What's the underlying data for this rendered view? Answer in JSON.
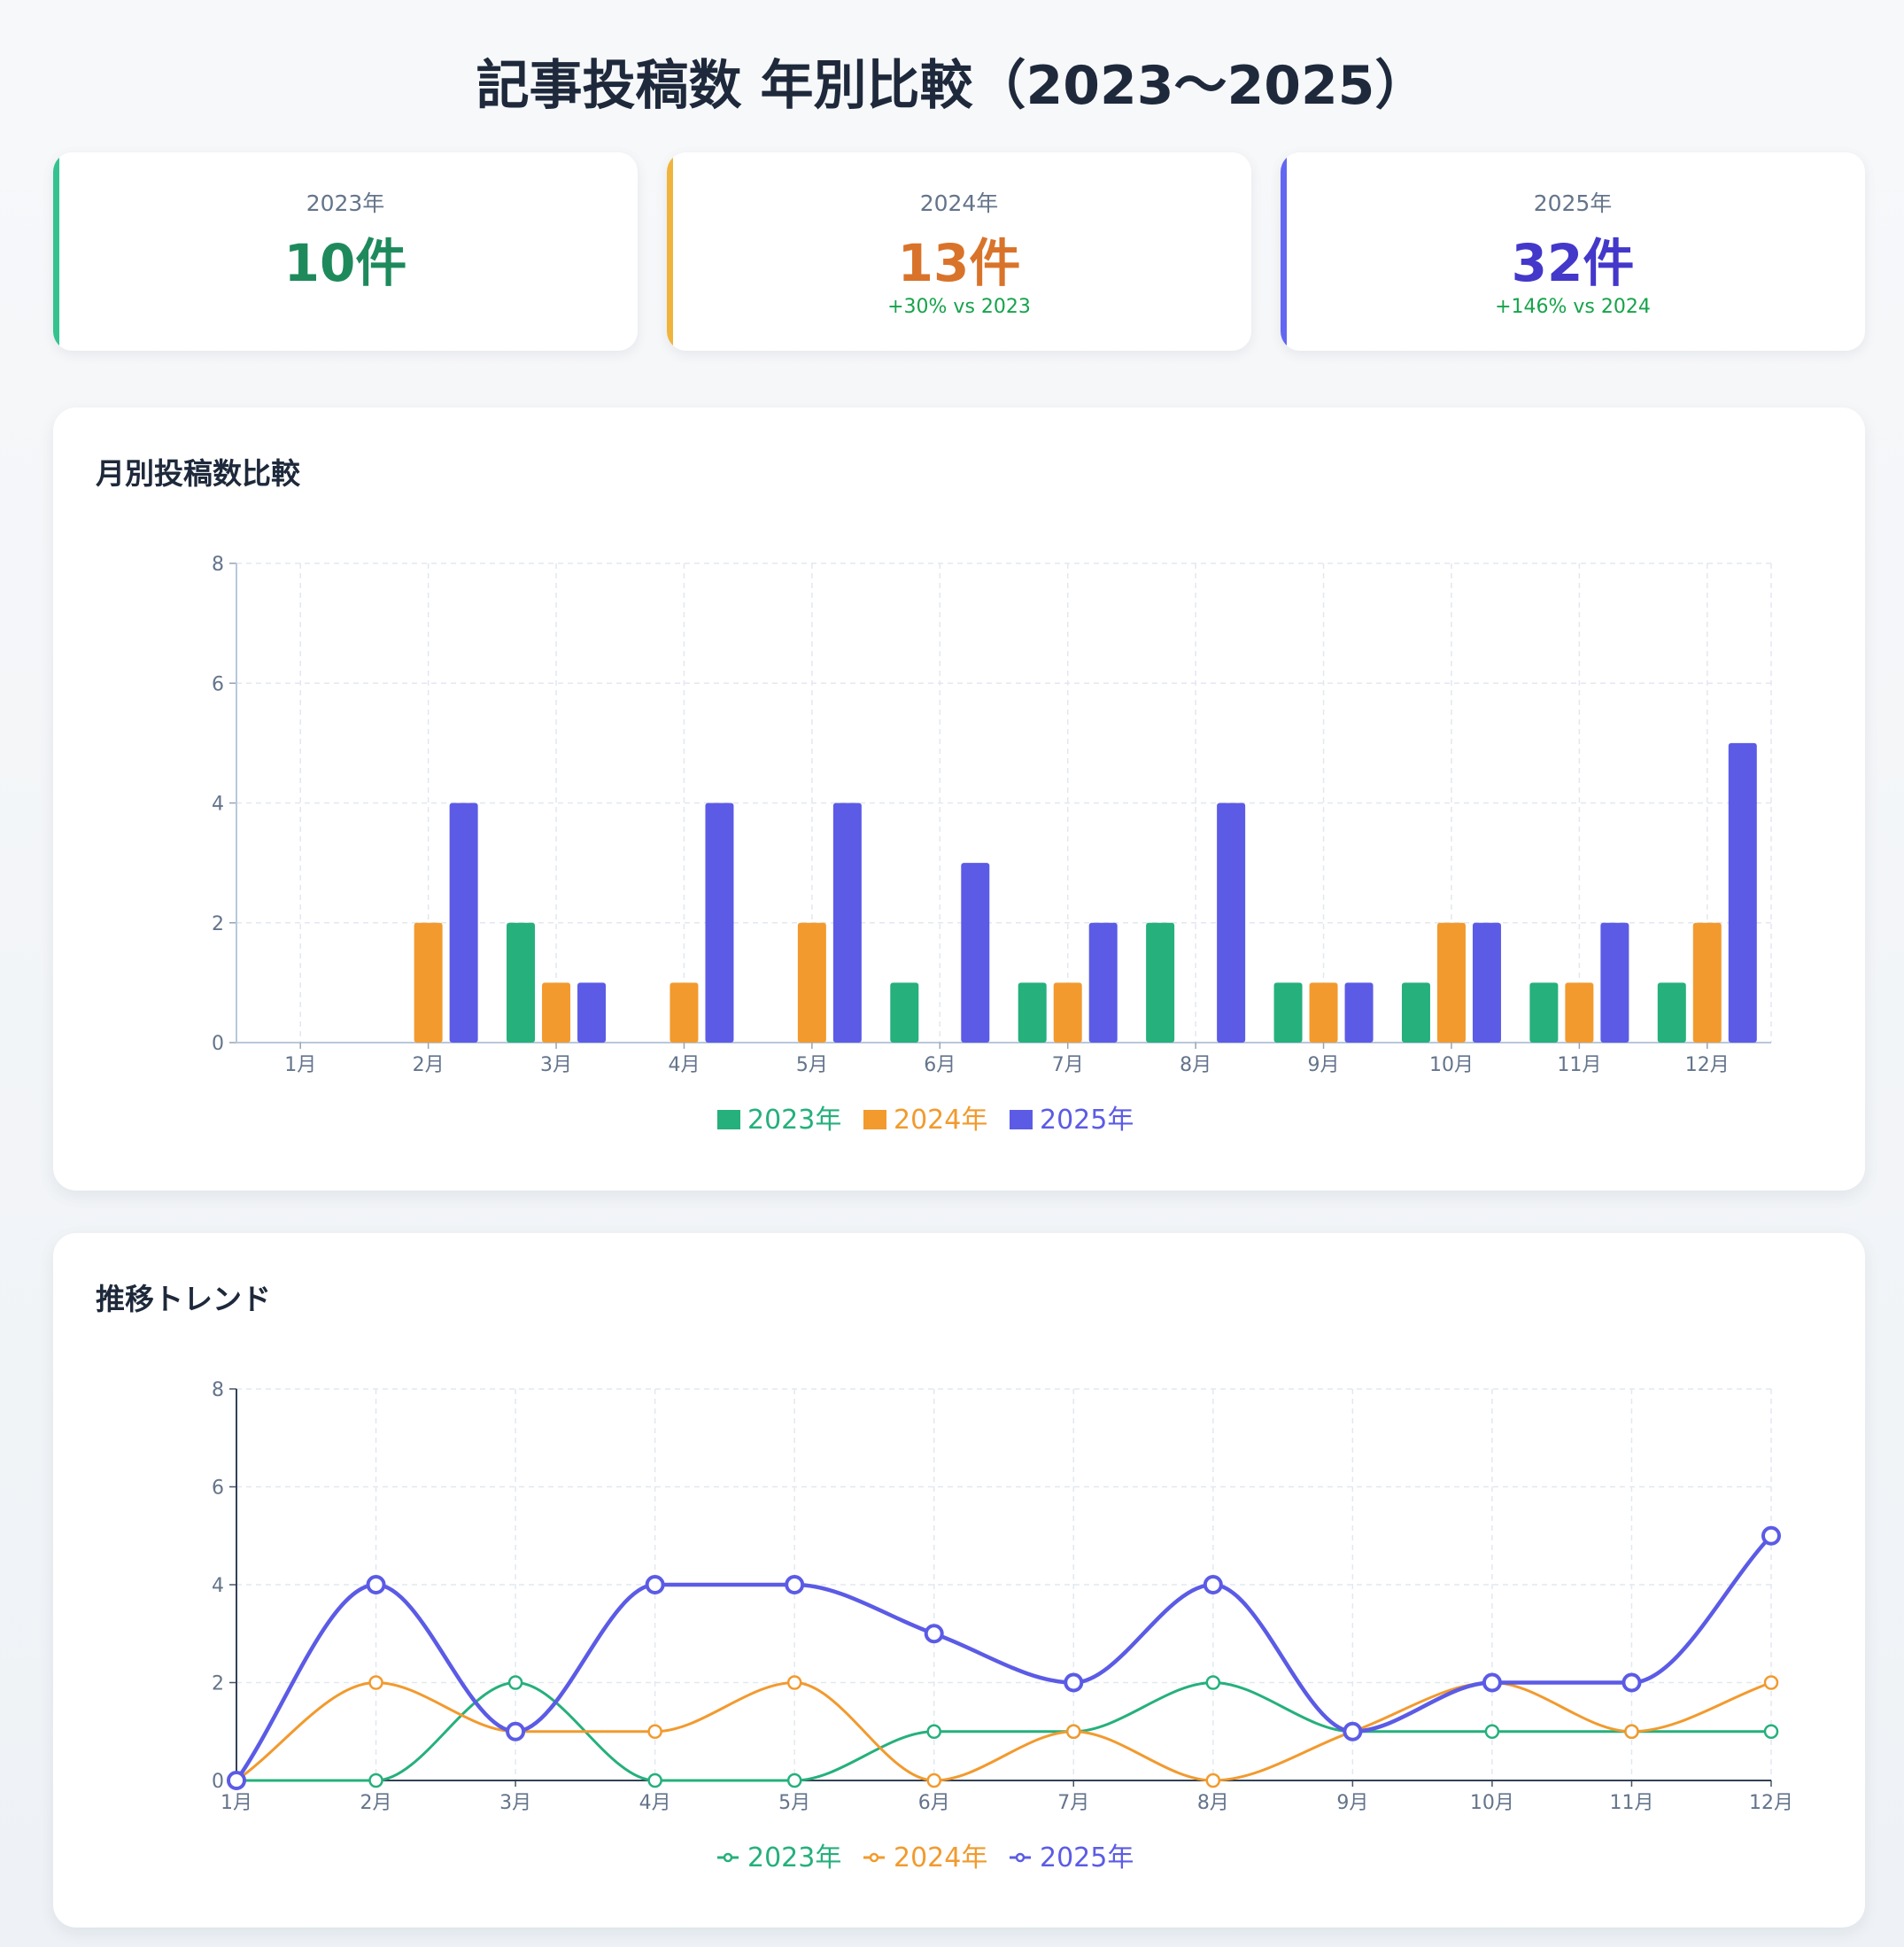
{
  "page": {
    "title": "記事投稿数 年別比較（2023〜2025）"
  },
  "stats": [
    {
      "label": "2023年",
      "value": "10件",
      "delta": "",
      "color": "#1e8a5c",
      "accent": "#34c38f"
    },
    {
      "label": "2024年",
      "value": "13件",
      "delta": "+30% vs 2023",
      "color": "#d9732a",
      "accent": "#f0b43c"
    },
    {
      "label": "2025年",
      "value": "32件",
      "delta": "+146% vs 2024",
      "color": "#4338ca",
      "accent": "#6366f1"
    }
  ],
  "colors": {
    "y2023": "#25b07c",
    "y2024": "#f29a2e",
    "y2025": "#5b5be6"
  },
  "chart_data": [
    {
      "type": "bar",
      "title": "月別投稿数比較",
      "categories": [
        "1月",
        "2月",
        "3月",
        "4月",
        "5月",
        "6月",
        "7月",
        "8月",
        "9月",
        "10月",
        "11月",
        "12月"
      ],
      "series": [
        {
          "name": "2023年",
          "values": [
            0,
            0,
            2,
            0,
            0,
            1,
            1,
            2,
            1,
            1,
            1,
            1
          ]
        },
        {
          "name": "2024年",
          "values": [
            0,
            2,
            1,
            1,
            2,
            0,
            1,
            0,
            1,
            2,
            1,
            2
          ]
        },
        {
          "name": "2025年",
          "values": [
            0,
            4,
            1,
            4,
            4,
            3,
            2,
            4,
            1,
            2,
            2,
            5
          ]
        }
      ],
      "ylim": [
        0,
        8
      ],
      "yticks": [
        "0",
        "2",
        "4",
        "6",
        "8"
      ],
      "grid": true,
      "legend": "bottom-center"
    },
    {
      "type": "line",
      "title": "推移トレンド",
      "categories": [
        "1月",
        "2月",
        "3月",
        "4月",
        "5月",
        "6月",
        "7月",
        "8月",
        "9月",
        "10月",
        "11月",
        "12月"
      ],
      "series": [
        {
          "name": "2023年",
          "values": [
            0,
            0,
            2,
            0,
            0,
            1,
            1,
            2,
            1,
            1,
            1,
            1
          ]
        },
        {
          "name": "2024年",
          "values": [
            0,
            2,
            1,
            1,
            2,
            0,
            1,
            0,
            1,
            2,
            1,
            2
          ]
        },
        {
          "name": "2025年",
          "values": [
            0,
            4,
            1,
            4,
            4,
            3,
            2,
            4,
            1,
            2,
            2,
            5
          ]
        }
      ],
      "ylim": [
        0,
        8
      ],
      "yticks": [
        "0",
        "2",
        "4",
        "6",
        "8"
      ],
      "grid": true,
      "legend": "bottom-center"
    }
  ]
}
